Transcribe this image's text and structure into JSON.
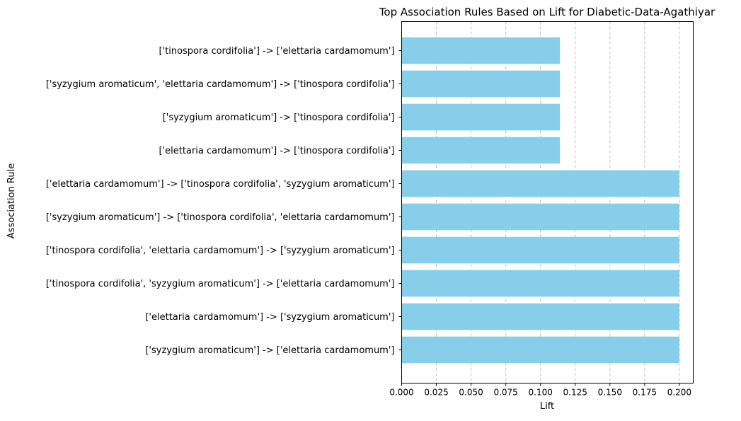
{
  "chart_data": {
    "type": "bar",
    "orientation": "horizontal",
    "title": "Top Association Rules Based on Lift for Diabetic-Data-Agathiyar",
    "xlabel": "Lift",
    "ylabel": "Association Rule",
    "xlim": [
      0,
      0.21
    ],
    "xticks": [
      "0.000",
      "0.025",
      "0.050",
      "0.075",
      "0.100",
      "0.125",
      "0.150",
      "0.175",
      "0.200"
    ],
    "grid": "vertical dashed",
    "bar_color": "#87CEEB",
    "categories": [
      "['tinospora cordifolia'] -> ['elettaria cardamomum']",
      "['syzygium aromaticum', 'elettaria cardamomum'] -> ['tinospora cordifolia']",
      "['syzygium aromaticum'] -> ['tinospora cordifolia']",
      "['elettaria cardamomum'] -> ['tinospora cordifolia']",
      "['elettaria cardamomum'] -> ['tinospora cordifolia', 'syzygium aromaticum']",
      "['syzygium aromaticum'] -> ['tinospora cordifolia', 'elettaria cardamomum']",
      "['tinospora cordifolia', 'elettaria cardamomum'] -> ['syzygium aromaticum']",
      "['tinospora cordifolia', 'syzygium aromaticum'] -> ['elettaria cardamomum']",
      "['elettaria cardamomum'] -> ['syzygium aromaticum']",
      "['syzygium aromaticum'] -> ['elettaria cardamomum']"
    ],
    "values": [
      0.114,
      0.114,
      0.114,
      0.114,
      0.2,
      0.2,
      0.2,
      0.2,
      0.2,
      0.2
    ]
  }
}
